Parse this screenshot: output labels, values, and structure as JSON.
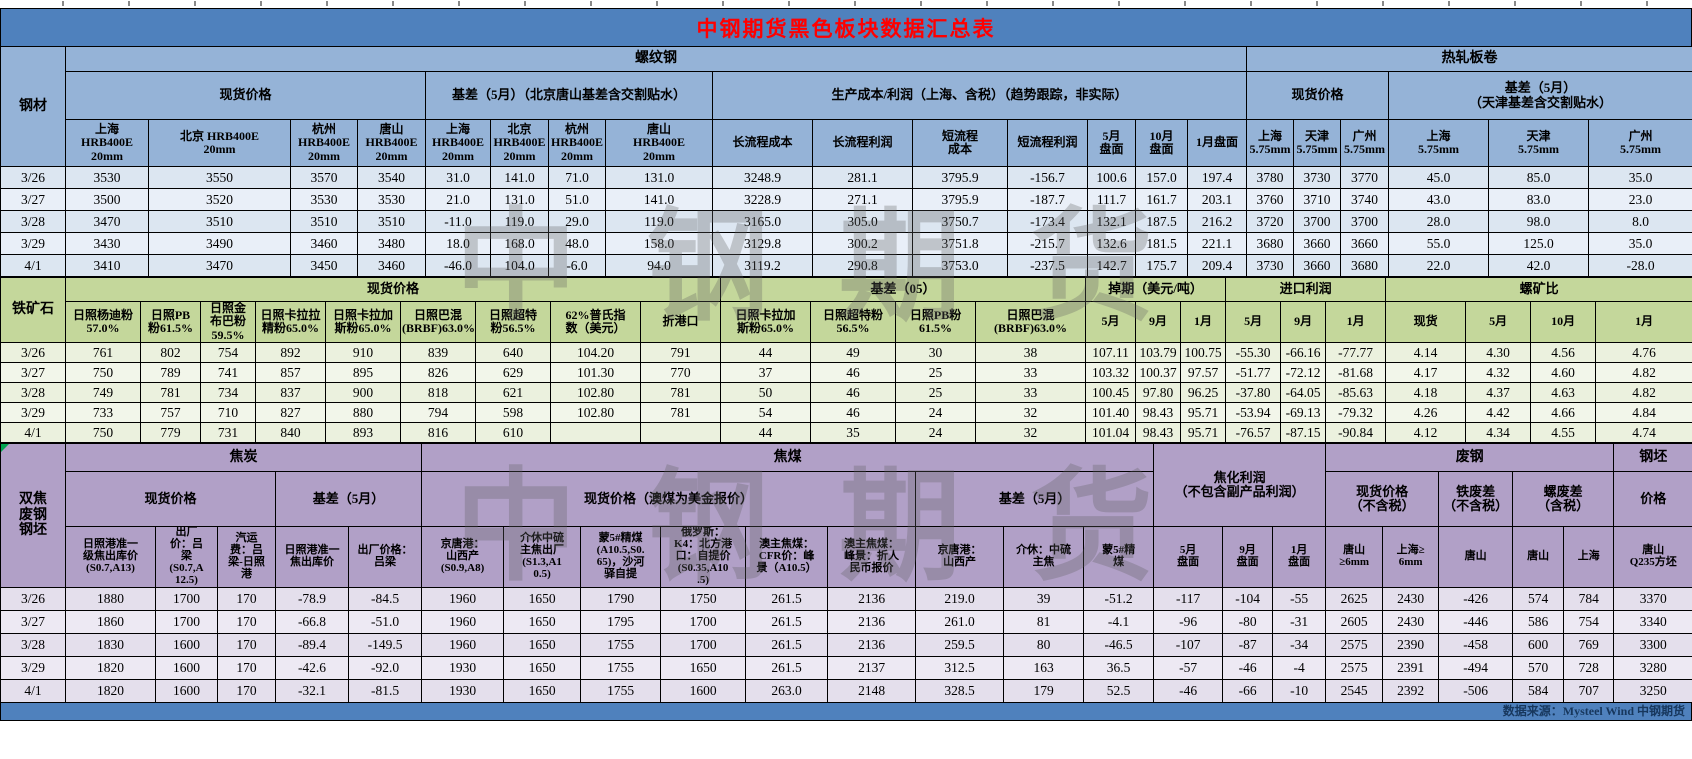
{
  "title": "中钢期货黑色板块数据汇总表",
  "watermark": "中钢期货",
  "footer": {
    "source": "数据来源：Mysteel Wind 中钢期货"
  },
  "colors": {
    "title_bar": "#4F81BD",
    "title_text": "#FF0000",
    "steel_header": "#95B3D7",
    "steel_row": "#DCE6F1",
    "iron_header": "#C4D79B",
    "iron_row": "#EBF1DE",
    "coke_header": "#B1A0C7",
    "coke_row": "#E4DFEC",
    "footer_text": "#17375D"
  },
  "steel": {
    "label": "钢材",
    "groups": {
      "rebar": "螺纹钢",
      "hrc": "热轧板卷",
      "spot": "现货价格",
      "basis": "基差（5月）（北京唐山基差含交割贴水）",
      "cost": "生产成本/利润（上海、含税）（趋势跟踪，非实际）",
      "hrc_spot": "现货价格",
      "hrc_basis": "基差（5月）\n（天津基差含交割贴水）"
    },
    "columns": [
      "上海\nHRB400E\n20mm",
      "北京 HRB400E\n20mm",
      "杭州\nHRB400E\n20mm",
      "唐山\nHRB400E\n20mm",
      "上海\nHRB400E\n20mm",
      "北京\nHRB400E\n20mm",
      "杭州\nHRB400E\n20mm",
      "唐山\nHRB400E\n20mm",
      "长流程成本",
      "长流程利润",
      "短流程\n成本",
      "短流程利润",
      "5月\n盘面",
      "10月\n盘面",
      "1月盘面",
      "上海\n5.75mm",
      "天津\n5.75mm",
      "广州\n5.75mm",
      "上海\n5.75mm",
      "天津\n5.75mm",
      "广州\n5.75mm"
    ],
    "rows": [
      {
        "date": "3/26",
        "values": [
          "3530",
          "3550",
          "3570",
          "3540",
          "31.0",
          "141.0",
          "71.0",
          "131.0",
          "3248.9",
          "281.1",
          "3795.9",
          "-156.7",
          "100.6",
          "157.0",
          "197.4",
          "3780",
          "3730",
          "3770",
          "45.0",
          "85.0",
          "35.0"
        ]
      },
      {
        "date": "3/27",
        "values": [
          "3500",
          "3520",
          "3530",
          "3530",
          "21.0",
          "131.0",
          "51.0",
          "141.0",
          "3228.9",
          "271.1",
          "3795.9",
          "-187.7",
          "111.7",
          "161.7",
          "203.1",
          "3760",
          "3710",
          "3740",
          "43.0",
          "83.0",
          "23.0"
        ]
      },
      {
        "date": "3/28",
        "values": [
          "3470",
          "3510",
          "3510",
          "3510",
          "-11.0",
          "119.0",
          "29.0",
          "119.0",
          "3165.0",
          "305.0",
          "3750.7",
          "-173.4",
          "132.1",
          "187.5",
          "216.2",
          "3720",
          "3700",
          "3700",
          "28.0",
          "98.0",
          "8.0"
        ]
      },
      {
        "date": "3/29",
        "values": [
          "3430",
          "3490",
          "3460",
          "3480",
          "18.0",
          "168.0",
          "48.0",
          "158.0",
          "3129.8",
          "300.2",
          "3751.8",
          "-215.7",
          "132.6",
          "181.5",
          "221.1",
          "3680",
          "3660",
          "3660",
          "55.0",
          "125.0",
          "35.0"
        ]
      },
      {
        "date": "4/1",
        "values": [
          "3410",
          "3470",
          "3450",
          "3460",
          "-46.0",
          "104.0",
          "-6.0",
          "94.0",
          "3119.2",
          "290.8",
          "3753.0",
          "-237.5",
          "142.7",
          "175.7",
          "209.4",
          "3730",
          "3660",
          "3680",
          "22.0",
          "42.0",
          "-28.0"
        ]
      }
    ]
  },
  "iron_ore": {
    "label": "铁矿石",
    "groups": {
      "spot": "现货价格",
      "basis": "基差（05）",
      "swap": "掉期（美元/吨）",
      "import_profit": "进口利润",
      "rebar_ore_ratio": "螺矿比"
    },
    "columns": [
      "日照杨迪粉\n57.0%",
      "日照PB\n粉61.5%",
      "日照金\n布巴粉\n59.5%",
      "日照卡拉拉\n精粉65.0%",
      "日照卡拉加\n斯粉65.0%",
      "日照巴混\n(BRBF)63.0%",
      "日照超特\n粉56.5%",
      "62%普氏指\n数（美元）",
      "折港口",
      "日照卡拉加\n斯粉65.0%",
      "日照超特粉\n56.5%",
      "日照PB粉\n61.5%",
      "日照巴混\n(BRBF)63.0%",
      "5月",
      "9月",
      "1月",
      "5月",
      "9月",
      "1月",
      "现货",
      "5月",
      "10月",
      "1月"
    ],
    "rows": [
      {
        "date": "3/26",
        "values": [
          "761",
          "802",
          "754",
          "892",
          "910",
          "839",
          "640",
          "104.20",
          "791",
          "44",
          "49",
          "30",
          "38",
          "107.11",
          "103.79",
          "100.75",
          "-55.30",
          "-66.16",
          "-77.77",
          "4.14",
          "4.30",
          "4.56",
          "4.76"
        ]
      },
      {
        "date": "3/27",
        "values": [
          "750",
          "789",
          "741",
          "857",
          "895",
          "826",
          "629",
          "101.30",
          "770",
          "37",
          "46",
          "25",
          "33",
          "103.32",
          "100.37",
          "97.57",
          "-51.77",
          "-72.12",
          "-81.68",
          "4.17",
          "4.32",
          "4.60",
          "4.82"
        ]
      },
      {
        "date": "3/28",
        "values": [
          "749",
          "781",
          "734",
          "837",
          "900",
          "818",
          "621",
          "102.80",
          "781",
          "50",
          "46",
          "25",
          "33",
          "100.45",
          "97.80",
          "96.25",
          "-37.80",
          "-64.05",
          "-85.63",
          "4.18",
          "4.37",
          "4.63",
          "4.82"
        ]
      },
      {
        "date": "3/29",
        "values": [
          "733",
          "757",
          "710",
          "827",
          "880",
          "794",
          "598",
          "102.80",
          "781",
          "54",
          "46",
          "24",
          "32",
          "101.40",
          "98.43",
          "95.71",
          "-53.94",
          "-69.13",
          "-79.32",
          "4.26",
          "4.42",
          "4.66",
          "4.84"
        ]
      },
      {
        "date": "4/1",
        "values": [
          "750",
          "779",
          "731",
          "840",
          "893",
          "816",
          "610",
          "",
          "",
          "44",
          "35",
          "24",
          "32",
          "101.04",
          "98.43",
          "95.71",
          "-76.57",
          "-87.15",
          "-90.84",
          "4.12",
          "4.34",
          "4.55",
          "4.74"
        ]
      }
    ]
  },
  "coke_scrap": {
    "label": "双焦\n废钢\n钢坯",
    "groups": {
      "coke": "焦炭",
      "coking_coal": "焦煤",
      "coking_profit": "焦化利润\n（不包含副产品利润）",
      "scrap": "废钢",
      "billet": "钢坯",
      "coke_spot": "现货价格",
      "coke_basis": "基差（5月）",
      "coal_spot": "现货价格（澳煤为美金报价）",
      "coal_basis": "基差（5月）",
      "scrap_spot": "现货价格\n（不含税）",
      "iron_scrap_spread": "铁废差\n（不含税）",
      "rebar_scrap_spread": "螺废差\n（含税）",
      "billet_price": "价格"
    },
    "columns": [
      "日照港准一\n级焦出库价\n(S0.7,A13)",
      "出厂\n价：吕\n梁\n(S0.7,A\n12.5)",
      "汽运\n费：吕\n梁-日照\n港",
      "日照港准一\n焦出库价",
      "出厂价格：\n吕梁",
      "京唐港：\n山西产\n(S0.9,A8)",
      "介休中硫\n主焦出厂\n(S1.3,A1\n0.5)",
      "蒙5#精煤\n(A10.5,S0.\n65)，沙河\n驿自提",
      "俄罗斯：\nK4：北方港\n口：自提价\n(S0.35,A10\n.5)",
      "澳主焦煤：\nCFR价：峰\n景（A10.5）",
      "澳主焦煤：\n峰景：折人\n民币报价",
      "京唐港：\n山西产",
      "介休：中硫\n主焦",
      "蒙5#精\n煤",
      "5月\n盘面",
      "9月\n盘面",
      "1月\n盘面",
      "唐山\n≥6mm",
      "上海≥\n6mm",
      "唐山",
      "唐山",
      "上海",
      "唐山\nQ235方坯"
    ],
    "rows": [
      {
        "date": "3/26",
        "values": [
          "1880",
          "1700",
          "170",
          "-78.9",
          "-84.5",
          "1960",
          "1650",
          "1790",
          "1750",
          "261.5",
          "2136",
          "219.0",
          "39",
          "-51.2",
          "-117",
          "-104",
          "-55",
          "2625",
          "2430",
          "-426",
          "574",
          "784",
          "3370"
        ]
      },
      {
        "date": "3/27",
        "values": [
          "1860",
          "1700",
          "170",
          "-66.8",
          "-51.0",
          "1960",
          "1650",
          "1795",
          "1700",
          "261.5",
          "2136",
          "261.0",
          "81",
          "-4.1",
          "-96",
          "-80",
          "-31",
          "2605",
          "2430",
          "-446",
          "586",
          "754",
          "3340"
        ]
      },
      {
        "date": "3/28",
        "values": [
          "1830",
          "1600",
          "170",
          "-89.4",
          "-149.5",
          "1960",
          "1650",
          "1755",
          "1700",
          "261.5",
          "2136",
          "259.5",
          "80",
          "-46.5",
          "-107",
          "-87",
          "-34",
          "2575",
          "2390",
          "-458",
          "600",
          "769",
          "3300"
        ]
      },
      {
        "date": "3/29",
        "values": [
          "1820",
          "1600",
          "170",
          "-42.6",
          "-92.0",
          "1930",
          "1650",
          "1755",
          "1650",
          "261.5",
          "2137",
          "312.5",
          "163",
          "36.5",
          "-57",
          "-46",
          "-4",
          "2575",
          "2391",
          "-494",
          "570",
          "728",
          "3280"
        ]
      },
      {
        "date": "4/1",
        "values": [
          "1820",
          "1600",
          "170",
          "-32.1",
          "-81.5",
          "1930",
          "1650",
          "1755",
          "1600",
          "263.0",
          "2148",
          "328.5",
          "179",
          "52.5",
          "-46",
          "-66",
          "-10",
          "2545",
          "2392",
          "-506",
          "584",
          "707",
          "3250"
        ]
      }
    ]
  }
}
